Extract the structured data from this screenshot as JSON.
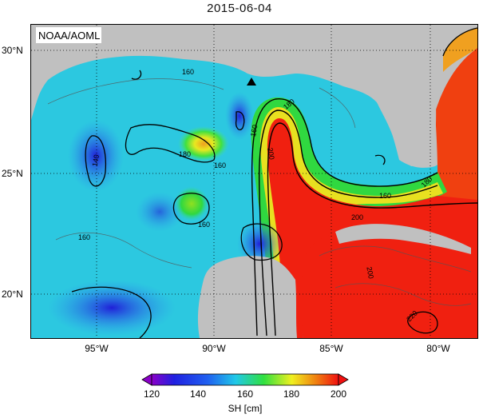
{
  "map": {
    "title": "2015-06-04",
    "credit": "NOAA/AOML",
    "lat_labels": [
      "30°N",
      "25°N",
      "20°N"
    ],
    "lon_labels": [
      "95°W",
      "90°W",
      "85°W",
      "80°W"
    ],
    "contour_labels": [
      "160",
      "180",
      "160",
      "140",
      "160",
      "180",
      "200",
      "160",
      "180",
      "160",
      "200",
      "200",
      "220",
      "160"
    ],
    "colors": {
      "land": "#c0c0c0",
      "low": "#1a1ad6",
      "mid": "#2cc8e0",
      "green": "#30d840",
      "yellow": "#f0f020",
      "high": "#f02010"
    }
  },
  "colorbar": {
    "ticks": [
      "120",
      "140",
      "160",
      "180",
      "200"
    ],
    "label": "SH [cm]",
    "min": 120,
    "max": 200
  }
}
